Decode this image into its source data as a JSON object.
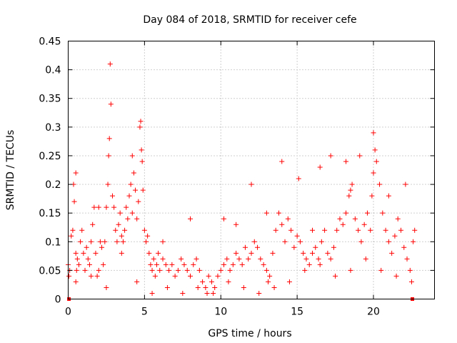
{
  "chart_data": {
    "type": "scatter",
    "title": "Day 084 of 2018, SRMTID for receiver cefe",
    "xlabel": "GPS time / hours",
    "ylabel": "SRMTID / TECUs",
    "xlim": [
      0,
      24
    ],
    "ylim": [
      0,
      0.45
    ],
    "xticks": [
      0,
      5,
      10,
      15,
      20
    ],
    "xtick_labels": [
      "0",
      "5",
      "10",
      "15",
      "20"
    ],
    "yticks": [
      0,
      0.05,
      0.1,
      0.15,
      0.2,
      0.25,
      0.3,
      0.35,
      0.4,
      0.45
    ],
    "ytick_labels": [
      "0",
      "0.05",
      "0.1",
      "0.15",
      "0.2",
      "0.25",
      "0.3",
      "0.35",
      "0.4",
      "0.45"
    ],
    "grid": true,
    "marker": "+",
    "color": "#ff0000",
    "series": [
      {
        "name": "SRMTID",
        "x": [
          0.0,
          0.05,
          0.1,
          0.2,
          0.3,
          0.35,
          0.4,
          0.5,
          0.55,
          0.6,
          0.7,
          0.8,
          0.9,
          1.0,
          1.1,
          1.2,
          1.3,
          1.4,
          1.5,
          1.6,
          1.7,
          1.8,
          1.9,
          2.0,
          2.1,
          2.2,
          2.3,
          2.4,
          2.5,
          2.6,
          2.65,
          2.7,
          2.75,
          2.8,
          2.9,
          3.0,
          3.1,
          3.2,
          3.3,
          3.4,
          3.5,
          3.6,
          3.7,
          3.8,
          3.9,
          4.0,
          4.1,
          4.2,
          4.3,
          4.4,
          4.5,
          4.6,
          4.7,
          4.75,
          4.8,
          4.85,
          4.9,
          5.0,
          5.1,
          5.2,
          5.3,
          5.4,
          5.5,
          5.6,
          5.7,
          5.8,
          5.9,
          6.0,
          6.2,
          6.4,
          6.6,
          6.8,
          7.0,
          7.2,
          7.4,
          7.6,
          7.8,
          8.0,
          8.2,
          8.4,
          8.6,
          8.8,
          9.0,
          9.1,
          9.2,
          9.4,
          9.6,
          9.8,
          10.0,
          10.2,
          10.4,
          10.6,
          10.8,
          11.0,
          11.2,
          11.4,
          11.6,
          11.8,
          12.0,
          12.2,
          12.4,
          12.6,
          12.8,
          13.0,
          13.1,
          13.2,
          13.4,
          13.6,
          13.8,
          14.0,
          14.2,
          14.4,
          14.6,
          14.8,
          15.0,
          15.2,
          15.4,
          15.6,
          15.8,
          16.0,
          16.2,
          16.4,
          16.6,
          16.8,
          17.0,
          17.2,
          17.4,
          17.6,
          17.8,
          18.0,
          18.2,
          18.4,
          18.6,
          18.8,
          19.0,
          19.2,
          19.4,
          19.6,
          19.8,
          19.9,
          20.0,
          20.1,
          20.2,
          20.4,
          20.6,
          20.8,
          21.0,
          21.2,
          21.4,
          21.6,
          21.8,
          22.0,
          22.2,
          22.4,
          22.6,
          22.7,
          0.5,
          1.5,
          2.5,
          3.5,
          4.5,
          5.5,
          6.5,
          7.5,
          8.5,
          9.5,
          10.5,
          11.5,
          12.5,
          13.5,
          14.5,
          15.5,
          16.5,
          17.5,
          18.5,
          19.5,
          20.5,
          21.5,
          22.5,
          10.2,
          12.0,
          15.1,
          14.0,
          16.5,
          17.2,
          18.2,
          19.1,
          20.0,
          0.5,
          2.0,
          4.2,
          6.2,
          8.0,
          11.0,
          13.0,
          16.0,
          18.5,
          21.0,
          22.1
        ],
        "y": [
          0.06,
          0.04,
          0.05,
          0.11,
          0.12,
          0.2,
          0.17,
          0.08,
          0.05,
          0.07,
          0.06,
          0.1,
          0.12,
          0.08,
          0.05,
          0.09,
          0.07,
          0.06,
          0.1,
          0.13,
          0.16,
          0.08,
          0.04,
          0.05,
          0.1,
          0.09,
          0.06,
          0.1,
          0.16,
          0.2,
          0.25,
          0.28,
          0.41,
          0.34,
          0.18,
          0.16,
          0.12,
          0.1,
          0.13,
          0.15,
          0.11,
          0.1,
          0.12,
          0.16,
          0.14,
          0.18,
          0.2,
          0.25,
          0.22,
          0.19,
          0.14,
          0.17,
          0.3,
          0.31,
          0.26,
          0.24,
          0.19,
          0.12,
          0.1,
          0.11,
          0.08,
          0.06,
          0.05,
          0.07,
          0.04,
          0.06,
          0.08,
          0.05,
          0.07,
          0.06,
          0.05,
          0.06,
          0.04,
          0.05,
          0.07,
          0.06,
          0.05,
          0.04,
          0.06,
          0.07,
          0.05,
          0.03,
          0.02,
          0.01,
          0.04,
          0.03,
          0.02,
          0.04,
          0.05,
          0.06,
          0.07,
          0.05,
          0.06,
          0.08,
          0.07,
          0.06,
          0.09,
          0.07,
          0.08,
          0.1,
          0.09,
          0.07,
          0.06,
          0.05,
          0.03,
          0.04,
          0.08,
          0.12,
          0.15,
          0.13,
          0.1,
          0.14,
          0.12,
          0.09,
          0.11,
          0.1,
          0.08,
          0.07,
          0.06,
          0.08,
          0.09,
          0.07,
          0.1,
          0.12,
          0.08,
          0.07,
          0.09,
          0.12,
          0.14,
          0.13,
          0.15,
          0.18,
          0.2,
          0.14,
          0.12,
          0.1,
          0.13,
          0.15,
          0.12,
          0.18,
          0.22,
          0.26,
          0.24,
          0.2,
          0.15,
          0.12,
          0.1,
          0.08,
          0.11,
          0.14,
          0.12,
          0.09,
          0.07,
          0.05,
          0.1,
          0.12,
          0.03,
          0.04,
          0.02,
          0.08,
          0.03,
          0.01,
          0.02,
          0.01,
          0.02,
          0.01,
          0.03,
          0.02,
          0.01,
          0.02,
          0.03,
          0.05,
          0.06,
          0.04,
          0.05,
          0.07,
          0.05,
          0.04,
          0.03,
          0.14,
          0.2,
          0.21,
          0.24,
          0.23,
          0.25,
          0.24,
          0.25,
          0.29,
          0.22,
          0.16,
          0.15,
          0.1,
          0.14,
          0.13,
          0.15,
          0.12,
          0.19,
          0.18,
          0.2
        ]
      }
    ],
    "baseline_markers_x": [
      0.05,
      22.55
    ],
    "baseline_markers_y": [
      0,
      0
    ]
  }
}
